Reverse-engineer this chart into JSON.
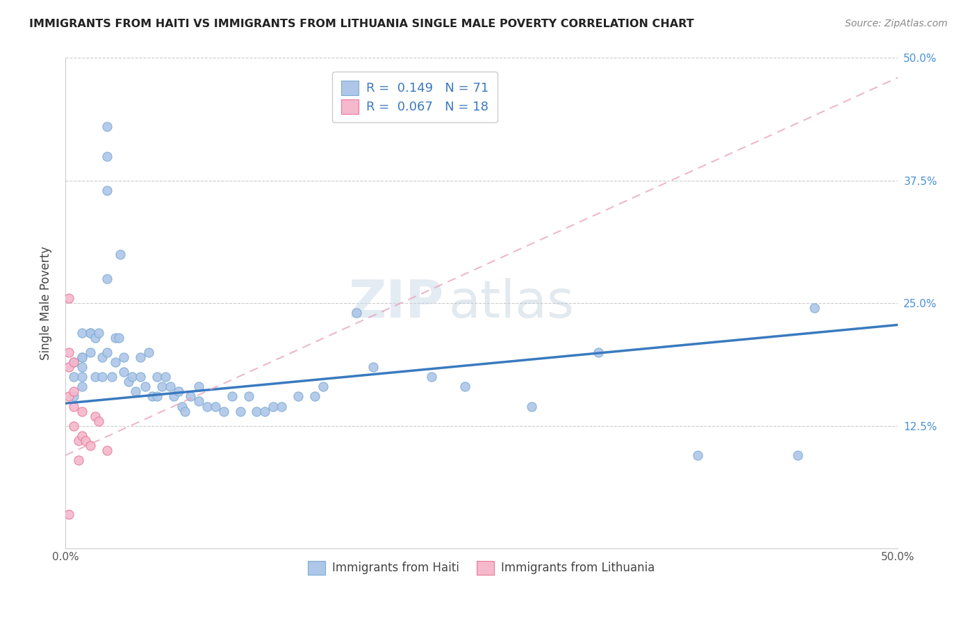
{
  "title": "IMMIGRANTS FROM HAITI VS IMMIGRANTS FROM LITHUANIA SINGLE MALE POVERTY CORRELATION CHART",
  "source": "Source: ZipAtlas.com",
  "ylabel": "Single Male Poverty",
  "xlim": [
    0.0,
    0.5
  ],
  "ylim": [
    0.0,
    0.5
  ],
  "haiti_color": "#aec6e8",
  "haiti_edge_color": "#7bacd4",
  "lithuania_color": "#f5b8cc",
  "lithuania_edge_color": "#e87898",
  "haiti_R": 0.149,
  "haiti_N": 71,
  "lithuania_R": 0.067,
  "lithuania_N": 18,
  "watermark": "ZIPatlas",
  "haiti_scatter_x": [
    0.025,
    0.025,
    0.025,
    0.033,
    0.025,
    0.005,
    0.005,
    0.005,
    0.01,
    0.01,
    0.015,
    0.01,
    0.01,
    0.01,
    0.01,
    0.015,
    0.015,
    0.018,
    0.018,
    0.02,
    0.022,
    0.022,
    0.025,
    0.028,
    0.03,
    0.03,
    0.032,
    0.035,
    0.035,
    0.038,
    0.04,
    0.042,
    0.045,
    0.045,
    0.048,
    0.05,
    0.052,
    0.055,
    0.055,
    0.058,
    0.06,
    0.063,
    0.065,
    0.068,
    0.07,
    0.072,
    0.075,
    0.08,
    0.08,
    0.085,
    0.09,
    0.095,
    0.1,
    0.105,
    0.11,
    0.115,
    0.12,
    0.125,
    0.13,
    0.14,
    0.15,
    0.155,
    0.175,
    0.185,
    0.22,
    0.24,
    0.28,
    0.32,
    0.38,
    0.44,
    0.45
  ],
  "haiti_scatter_y": [
    0.43,
    0.4,
    0.365,
    0.3,
    0.275,
    0.19,
    0.175,
    0.155,
    0.22,
    0.195,
    0.22,
    0.195,
    0.185,
    0.175,
    0.165,
    0.22,
    0.2,
    0.215,
    0.175,
    0.22,
    0.195,
    0.175,
    0.2,
    0.175,
    0.215,
    0.19,
    0.215,
    0.195,
    0.18,
    0.17,
    0.175,
    0.16,
    0.195,
    0.175,
    0.165,
    0.2,
    0.155,
    0.175,
    0.155,
    0.165,
    0.175,
    0.165,
    0.155,
    0.16,
    0.145,
    0.14,
    0.155,
    0.165,
    0.15,
    0.145,
    0.145,
    0.14,
    0.155,
    0.14,
    0.155,
    0.14,
    0.14,
    0.145,
    0.145,
    0.155,
    0.155,
    0.165,
    0.24,
    0.185,
    0.175,
    0.165,
    0.145,
    0.2,
    0.095,
    0.095,
    0.245
  ],
  "lithuania_scatter_x": [
    0.002,
    0.002,
    0.002,
    0.002,
    0.002,
    0.005,
    0.005,
    0.005,
    0.005,
    0.008,
    0.008,
    0.01,
    0.01,
    0.012,
    0.015,
    0.018,
    0.02,
    0.025
  ],
  "lithuania_scatter_y": [
    0.255,
    0.2,
    0.185,
    0.155,
    0.035,
    0.19,
    0.16,
    0.145,
    0.125,
    0.11,
    0.09,
    0.14,
    0.115,
    0.11,
    0.105,
    0.135,
    0.13,
    0.1
  ],
  "haiti_line_x": [
    0.0,
    0.5
  ],
  "haiti_line_y": [
    0.148,
    0.228
  ],
  "lithuania_line_x": [
    0.0,
    0.5
  ],
  "lithuania_line_y": [
    0.095,
    0.48
  ]
}
